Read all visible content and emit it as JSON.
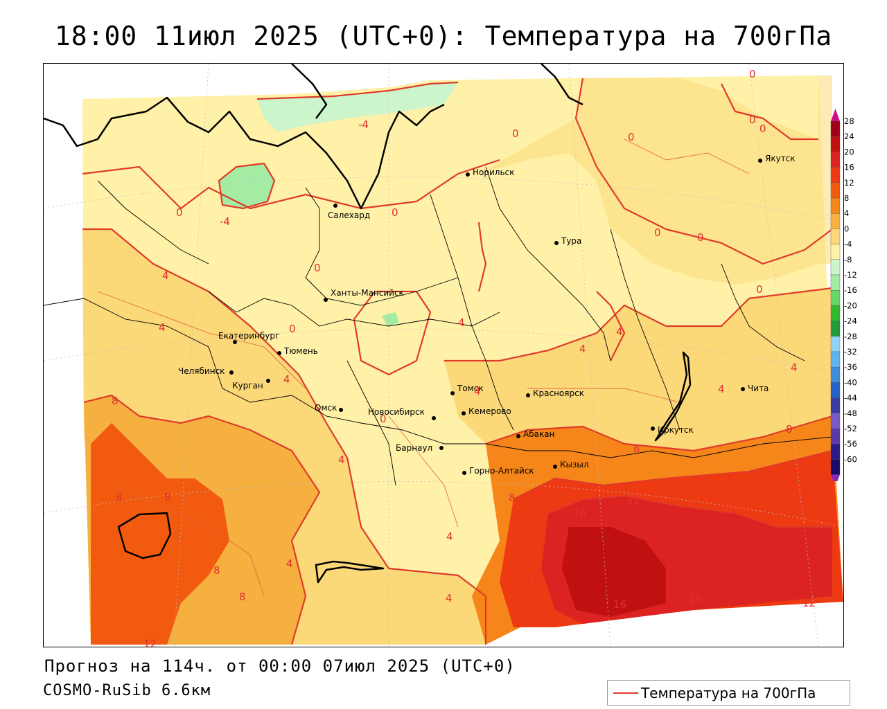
{
  "title": "18:00 11июл 2025 (UTC+0): Температура на 700гПа",
  "forecast_line": "Прогноз на 114ч. от 00:00 07июл 2025 (UTC+0)",
  "model_line": "COSMO-RuSib 6.6км",
  "legend_key": {
    "label": "Температура на 700гПа",
    "line_color": "#e03a2a"
  },
  "colorbar": {
    "labels": [
      "28",
      "24",
      "20",
      "16",
      "12",
      "8",
      "4",
      "0",
      "-4",
      "-8",
      "-12",
      "-16",
      "-20",
      "-24",
      "-28",
      "-32",
      "-36",
      "-40",
      "-44",
      "-48",
      "-52",
      "-56",
      "-60"
    ],
    "colors": [
      "#a0001a",
      "#c01010",
      "#dd2222",
      "#ee3a12",
      "#f25a10",
      "#f6861a",
      "#f9b240",
      "#fbd878",
      "#fff1a8",
      "#ccf5cc",
      "#a4eca4",
      "#66d866",
      "#2ebc2e",
      "#1f9d3a",
      "#8fd4f4",
      "#5cb4ee",
      "#3c8edc",
      "#2462c8",
      "#3a3aa6",
      "#7a5ac8",
      "#5a3aa8",
      "#2a1a8a",
      "#1a0a6a"
    ],
    "top_arrow_color": "#cc1188",
    "bottom_arrow_color": "#8a2ab8"
  },
  "cities": [
    {
      "name": "Якутск"
    },
    {
      "name": "Норильск"
    },
    {
      "name": "Салехард"
    },
    {
      "name": "Тура"
    },
    {
      "name": "Ханты-Мансийск"
    },
    {
      "name": "Екатеринбург"
    },
    {
      "name": "Тюмень"
    },
    {
      "name": "Челябинск"
    },
    {
      "name": "Курган"
    },
    {
      "name": "Омск"
    },
    {
      "name": "Томск"
    },
    {
      "name": "Красноярск"
    },
    {
      "name": "Новосибирск"
    },
    {
      "name": "Кемерово"
    },
    {
      "name": "Абакан"
    },
    {
      "name": "Барнаул"
    },
    {
      "name": "Горно-Алтайск"
    },
    {
      "name": "Кызыл"
    },
    {
      "name": "Иркутск"
    },
    {
      "name": "Чита"
    }
  ],
  "contour_labels": [
    "-4",
    "0",
    "0",
    "0",
    "0",
    "0",
    "0",
    "0",
    "0",
    "0",
    "-4",
    "0",
    "0",
    "4",
    "4",
    "4",
    "0",
    "4",
    "4",
    "4",
    "4",
    "4",
    "4",
    "4",
    "8",
    "8",
    "8",
    "8",
    "8",
    "8",
    "8",
    "8",
    "4",
    "4",
    "4",
    "12",
    "12",
    "12",
    "16",
    "16",
    "16",
    "12",
    "12",
    "0"
  ],
  "colors": {
    "contour": "#e03a2a",
    "border": "#000000",
    "grid": "#bfbfbf"
  }
}
